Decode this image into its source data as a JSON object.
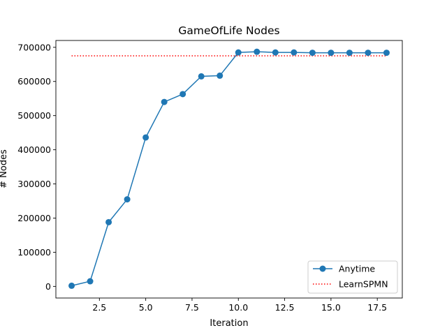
{
  "chart_data": {
    "type": "line",
    "title": "GameOfLife Nodes",
    "xlabel": "Iteration",
    "ylabel": "# Nodes",
    "xlim": [
      0.15,
      18.85
    ],
    "ylim": [
      -34000,
      720000
    ],
    "xticks": [
      2.5,
      5.0,
      7.5,
      10.0,
      12.5,
      15.0,
      17.5
    ],
    "xtick_labels": [
      "2.5",
      "5.0",
      "7.5",
      "10.0",
      "12.5",
      "15.0",
      "17.5"
    ],
    "yticks": [
      0,
      100000,
      200000,
      300000,
      400000,
      500000,
      600000,
      700000
    ],
    "ytick_labels": [
      "0",
      "100000",
      "200000",
      "300000",
      "400000",
      "500000",
      "600000",
      "700000"
    ],
    "grid": false,
    "legend_position": "lower-right",
    "series": [
      {
        "name": "Anytime",
        "style": "solid-line-with-circle-markers",
        "color": "#1f77b4",
        "x": [
          1,
          2,
          3,
          4,
          5,
          6,
          7,
          8,
          9,
          10,
          11,
          12,
          13,
          14,
          15,
          16,
          17,
          18
        ],
        "y": [
          2000,
          15000,
          188000,
          255000,
          436000,
          540000,
          563000,
          615000,
          617000,
          685000,
          687000,
          685000,
          685000,
          684000,
          684000,
          684000,
          684000,
          684000
        ]
      },
      {
        "name": "LearnSPMN",
        "style": "dotted-line",
        "color": "#ff0000",
        "x": [
          1,
          18
        ],
        "y": [
          675000,
          675000
        ]
      }
    ]
  }
}
